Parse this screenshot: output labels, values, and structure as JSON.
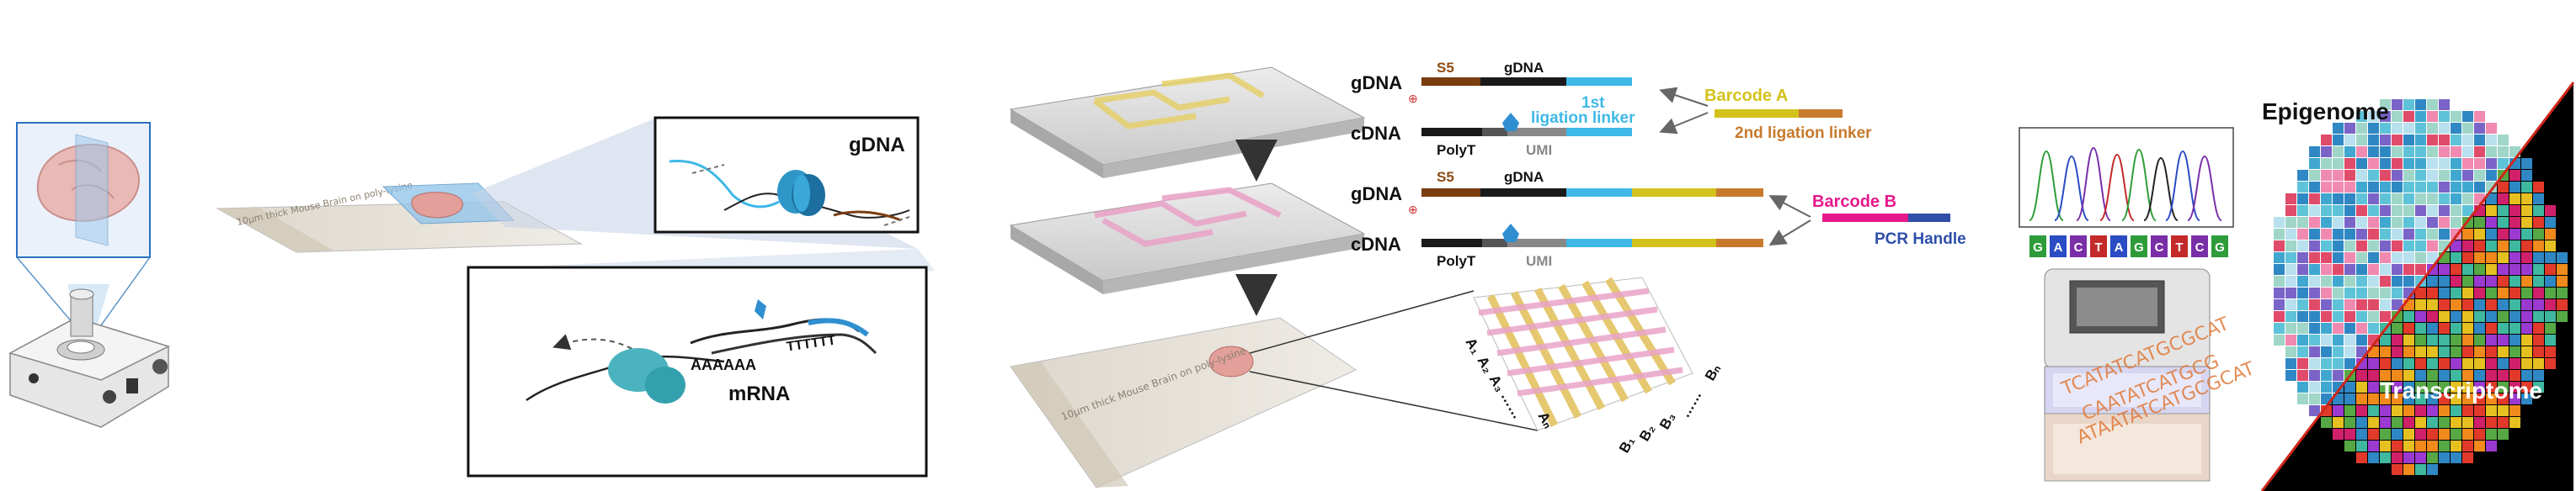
{
  "slide_text": "10μm thick Mouse Brain on poly-lysine",
  "zoom_top": {
    "label": "gDNA"
  },
  "zoom_bottom": {
    "label": "mRNA",
    "polyA": "AAAAAA",
    "polyT": "TTTTTT"
  },
  "constructs": {
    "row1": {
      "left": "gDNA",
      "s5": "S5",
      "mid": "gDNA",
      "linker": "1st",
      "linker2": "ligation linker"
    },
    "row2": {
      "left": "cDNA",
      "polyt": "PolyT",
      "umi": "UMI"
    },
    "row3": {
      "left": "gDNA",
      "s5": "S5",
      "mid": "gDNA"
    },
    "row4": {
      "left": "cDNA",
      "polyt": "PolyT",
      "umi": "UMI"
    },
    "barcode_a": "Barcode A",
    "second_linker": "2nd ligation linker",
    "barcode_b": "Barcode B",
    "pcr_handle": "PCR Handle"
  },
  "grid_labels": {
    "a_row": [
      "A₁",
      "A₂",
      "A₃",
      "……",
      "Aₙ"
    ],
    "b_row": [
      "B₁",
      "B₂",
      "B₃",
      "……",
      "Bₙ"
    ]
  },
  "sequencing": {
    "bases": [
      "G",
      "A",
      "C",
      "T",
      "A",
      "G",
      "C",
      "T",
      "C",
      "G"
    ],
    "reads": [
      "TCATATCATGCGCAT",
      "CAATATCATGCG",
      "ATAATATCATGCGCAT"
    ]
  },
  "outputs": {
    "epigenome": "Epigenome",
    "transcriptome": "Transcriptome"
  },
  "colors": {
    "s5": "#7a3d10",
    "black": "#1a1a1a",
    "linker1": "#3fb8e8",
    "barcode_a": "#d4c21c",
    "linker2": "#c77a2c",
    "barcode_b": "#e6198c",
    "pcr": "#2f4fa8",
    "umi": "#888888"
  }
}
